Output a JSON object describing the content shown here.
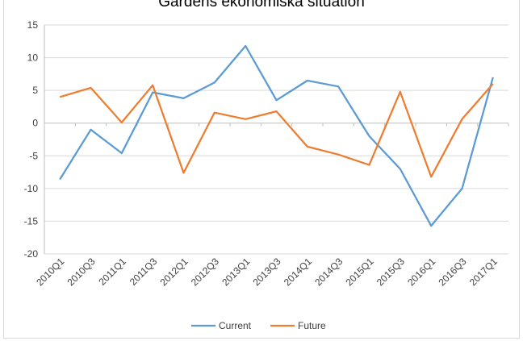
{
  "chart_data": {
    "type": "line",
    "title": "Gardens ekonomiska situation",
    "categories": [
      "2010Q1",
      "2010Q3",
      "2011Q1",
      "2011Q3",
      "2012Q1",
      "2012Q3",
      "2013Q1",
      "2013Q3",
      "2014Q1",
      "2014Q3",
      "2015Q1",
      "2015Q3",
      "2016Q1",
      "2016Q3",
      "2017Q1"
    ],
    "yticks": [
      "15",
      "10",
      "5",
      "0",
      "-5",
      "-10",
      "-15",
      "-20"
    ],
    "ylim": [
      -20,
      15
    ],
    "grid": true,
    "legend_position": "bottom",
    "series": [
      {
        "name": "Current",
        "color": "#5b9bd5",
        "values": [
          -8.6,
          -1.0,
          -4.6,
          4.7,
          3.8,
          6.2,
          11.8,
          3.5,
          6.5,
          5.6,
          -2.0,
          -7.0,
          -15.7,
          -10.0,
          7.0
        ]
      },
      {
        "name": "Future",
        "color": "#ed7d31",
        "values": [
          4.0,
          5.4,
          0.1,
          5.8,
          -7.6,
          1.6,
          0.6,
          1.8,
          -3.6,
          -4.8,
          -6.4,
          4.8,
          -8.2,
          0.6,
          6.0
        ]
      }
    ]
  }
}
